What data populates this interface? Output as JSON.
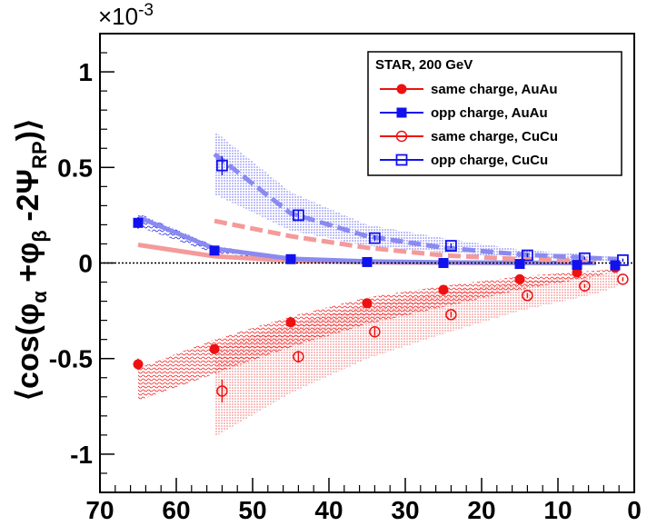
{
  "chart_data": {
    "type": "scatter",
    "ylabel": {
      "open": "⟨cos(φ",
      "sub_a": "α",
      "plus": " +φ",
      "sub_b": "β",
      "mid": " -2Ψ",
      "sub_rp": "RP",
      "close": ")⟩"
    },
    "y_exponent": "×10",
    "y_exponent_power": "-3",
    "xlim": [
      70,
      0
    ],
    "ylim": [
      -1.2,
      1.2
    ],
    "x_ticks": [
      70,
      60,
      50,
      40,
      30,
      20,
      10,
      0
    ],
    "x_tick_labels": [
      "70",
      "60",
      "50",
      "40",
      "30",
      "20",
      "10",
      "0"
    ],
    "y_ticks": [
      -1,
      -0.5,
      0,
      0.5,
      1
    ],
    "y_tick_labels": [
      "-1",
      "-0.5",
      "0",
      "0.5",
      "1"
    ],
    "zero_line": true,
    "legend": {
      "position": "top-right",
      "title": "STAR,  200 GeV"
    },
    "series": [
      {
        "name": "same charge, AuAu",
        "marker": "filled-circle",
        "color": "#ee1111",
        "x": [
          65,
          55,
          45,
          35,
          25,
          15,
          7.5,
          2.5
        ],
        "y": [
          -0.53,
          -0.45,
          -0.31,
          -0.21,
          -0.14,
          -0.085,
          -0.05,
          -0.025
        ],
        "err": [
          0.03,
          0.02,
          0.015,
          0.012,
          0.01,
          0.008,
          0.008,
          0.008
        ]
      },
      {
        "name": "opp charge, AuAu",
        "marker": "filled-square",
        "color": "#1111ee",
        "x": [
          65,
          55,
          45,
          35,
          25,
          15,
          7.5,
          2.5
        ],
        "y": [
          0.21,
          0.065,
          0.02,
          0.005,
          0.0,
          -0.005,
          -0.01,
          -0.012
        ],
        "err": [
          0.03,
          0.015,
          0.01,
          0.008,
          0.007,
          0.006,
          0.006,
          0.006
        ]
      },
      {
        "name": "same charge, CuCu",
        "marker": "open-circle",
        "color": "#ee1111",
        "x": [
          54,
          44,
          34,
          24,
          14,
          6.5,
          1.5
        ],
        "y": [
          -0.67,
          -0.49,
          -0.36,
          -0.27,
          -0.17,
          -0.12,
          -0.085
        ],
        "err": [
          0.06,
          0.03,
          0.02,
          0.015,
          0.012,
          0.01,
          0.01
        ]
      },
      {
        "name": "opp charge, CuCu",
        "marker": "open-square",
        "color": "#1111ee",
        "x": [
          54,
          44,
          34,
          24,
          14,
          6.5,
          1.5
        ],
        "y": [
          0.51,
          0.25,
          0.13,
          0.09,
          0.04,
          0.025,
          0.015
        ],
        "err": [
          0.05,
          0.025,
          0.015,
          0.012,
          0.01,
          0.008,
          0.008
        ]
      }
    ],
    "bands": [
      {
        "color": "#ee1111",
        "x": [
          65,
          55,
          45,
          35,
          25,
          15,
          5,
          2
        ],
        "y_upper": [
          -0.55,
          -0.4,
          -0.28,
          -0.18,
          -0.12,
          -0.07,
          -0.04,
          -0.03
        ],
        "y_lower": [
          -0.72,
          -0.58,
          -0.44,
          -0.32,
          -0.23,
          -0.14,
          -0.07,
          -0.04
        ]
      },
      {
        "color": "#1111ee",
        "x": [
          65,
          55,
          45
        ],
        "y_upper": [
          0.26,
          0.09,
          0.025
        ],
        "y_lower": [
          0.19,
          0.05,
          0.012
        ]
      },
      {
        "color": "#ee1111",
        "x": [
          55,
          45,
          35,
          25,
          15,
          5,
          2
        ],
        "y_upper": [
          -0.44,
          -0.32,
          -0.22,
          -0.15,
          -0.1,
          -0.06,
          -0.05
        ],
        "y_lower": [
          -0.91,
          -0.68,
          -0.5,
          -0.37,
          -0.25,
          -0.16,
          -0.12
        ]
      },
      {
        "color": "#1111ee",
        "x": [
          55,
          45,
          35,
          25,
          15,
          5,
          2
        ],
        "y_upper": [
          0.69,
          0.37,
          0.2,
          0.13,
          0.07,
          0.04,
          0.03
        ],
        "y_lower": [
          0.36,
          0.17,
          0.09,
          0.055,
          0.025,
          0.01,
          0.005
        ]
      }
    ],
    "curves": [
      {
        "style": "solid",
        "color": "#f49a9a",
        "x": [
          65,
          55,
          45,
          35,
          25,
          15,
          5
        ],
        "y": [
          0.095,
          0.035,
          0.012,
          0.004,
          0.001,
          0.0,
          0.0
        ]
      },
      {
        "style": "solid",
        "color": "#8a8af0",
        "x": [
          65,
          55,
          45,
          35,
          25,
          15,
          5
        ],
        "y": [
          0.24,
          0.075,
          0.022,
          0.008,
          0.003,
          0.001,
          0.0
        ]
      },
      {
        "style": "dashed",
        "color": "#f49a9a",
        "x": [
          55,
          45,
          35,
          25,
          15,
          5
        ],
        "y": [
          0.22,
          0.14,
          0.08,
          0.04,
          0.02,
          0.01
        ]
      },
      {
        "style": "dashed",
        "color": "#8a8af0",
        "x": [
          55,
          45,
          35,
          25,
          15,
          5,
          2
        ],
        "y": [
          0.57,
          0.26,
          0.14,
          0.08,
          0.045,
          0.025,
          0.02
        ]
      }
    ]
  }
}
